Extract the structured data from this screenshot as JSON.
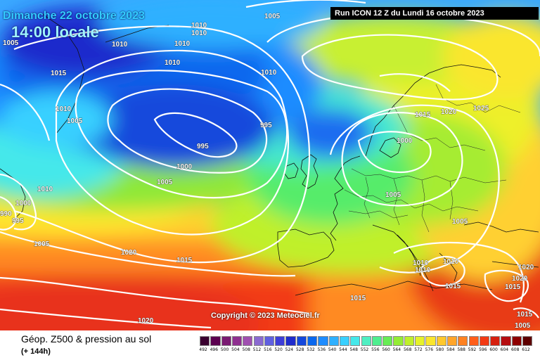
{
  "title_line1": "Dimanche 22 octobre 2023",
  "title_line2": "14:00 locale",
  "run_info": "Run ICON 12 Z du Lundi 16 octobre 2023",
  "copyright": "Copyright © 2023 Meteociel.fr",
  "variable": "Géop. Z500 & pression au sol",
  "lead_time": "(+ 144h)",
  "scale": {
    "ticks": [
      "492",
      "496",
      "500",
      "504",
      "508",
      "512",
      "516",
      "520",
      "524",
      "528",
      "532",
      "536",
      "540",
      "544",
      "548",
      "552",
      "556",
      "560",
      "564",
      "568",
      "572",
      "576",
      "580",
      "584",
      "588",
      "592",
      "596",
      "600",
      "604",
      "608",
      "612"
    ],
    "colors": [
      "#3a0030",
      "#5c0050",
      "#7a1a72",
      "#8f3090",
      "#a050b0",
      "#8a6ad0",
      "#6060e0",
      "#3d3dd8",
      "#1f2ccc",
      "#1448dc",
      "#0a68ee",
      "#1e8cff",
      "#2fb0ff",
      "#39d0ff",
      "#45e8ea",
      "#4fefc2",
      "#4fee8f",
      "#68ec55",
      "#94ec35",
      "#c0f02a",
      "#e6f22a",
      "#fae62d",
      "#ffc82d",
      "#ffa52a",
      "#ff8221",
      "#ff5e1a",
      "#f23a14",
      "#d6200f",
      "#b50d10",
      "#8e0000",
      "#5e0000"
    ]
  },
  "isobar_labels": [
    {
      "text": "1010"
    },
    {
      "text": "1010"
    },
    {
      "text": "1005"
    },
    {
      "text": "1010"
    },
    {
      "text": "1010"
    },
    {
      "text": "1010"
    },
    {
      "text": "1005"
    },
    {
      "text": "1015"
    },
    {
      "text": "1010"
    },
    {
      "text": "1005"
    },
    {
      "text": "1010"
    },
    {
      "text": "995"
    },
    {
      "text": "995"
    },
    {
      "text": "1000"
    },
    {
      "text": "1005"
    },
    {
      "text": "1010"
    },
    {
      "text": "1000"
    },
    {
      "text": "990"
    },
    {
      "text": "995"
    },
    {
      "text": "1005"
    },
    {
      "text": "1020"
    },
    {
      "text": "1015"
    },
    {
      "text": "1020"
    },
    {
      "text": "1015"
    },
    {
      "text": "1020"
    },
    {
      "text": "1025"
    },
    {
      "text": "1000"
    },
    {
      "text": "1005"
    },
    {
      "text": "1005"
    },
    {
      "text": "1010"
    },
    {
      "text": "1010"
    },
    {
      "text": "1010"
    },
    {
      "text": "1015"
    },
    {
      "text": "1015"
    },
    {
      "text": "1020"
    },
    {
      "text": "1020"
    },
    {
      "text": "1015"
    },
    {
      "text": "1015"
    },
    {
      "text": "1005"
    }
  ]
}
